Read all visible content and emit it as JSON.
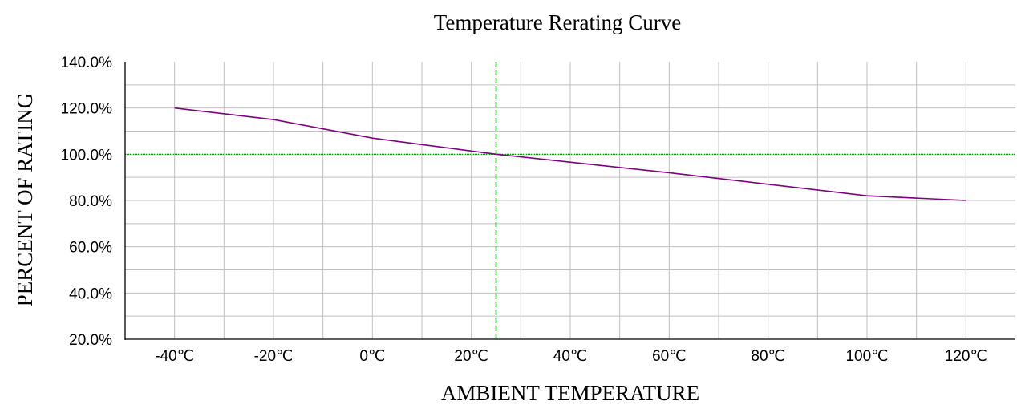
{
  "chart_data": {
    "type": "line",
    "title": "Temperature Rerating Curve",
    "xlabel": "AMBIENT TEMPERATURE",
    "ylabel": "PERCENT OF RATING",
    "x_tick_labels": [
      "-40℃",
      "-20℃",
      "0℃",
      "20℃",
      "40℃",
      "60℃",
      "80℃",
      "100℃",
      "120℃"
    ],
    "x_ticks": [
      -40,
      -20,
      0,
      20,
      40,
      60,
      80,
      100,
      120
    ],
    "y_tick_labels": [
      "20.0%",
      "40.0%",
      "60.0%",
      "80.0%",
      "100.0%",
      "120.0%",
      "140.0%"
    ],
    "y_ticks": [
      20,
      40,
      60,
      80,
      100,
      120,
      140
    ],
    "xlim": [
      -50,
      130
    ],
    "ylim": [
      20,
      140
    ],
    "x_minor_grid_step": 10,
    "y_minor_grid_step": 10,
    "grid": true,
    "series": [
      {
        "x": [
          -40,
          -20,
          0,
          25,
          60,
          100,
          120
        ],
        "y": [
          120,
          115,
          107,
          100,
          92,
          82,
          80
        ],
        "color": "#800080"
      }
    ],
    "reference_lines": [
      {
        "axis": "x",
        "value": 25,
        "color": "#008000",
        "style": "dashed"
      },
      {
        "axis": "y",
        "value": 100,
        "color": "#008000",
        "style": "solid"
      }
    ],
    "grid_color": "#c0c0c0",
    "axis_color": "#000000"
  }
}
